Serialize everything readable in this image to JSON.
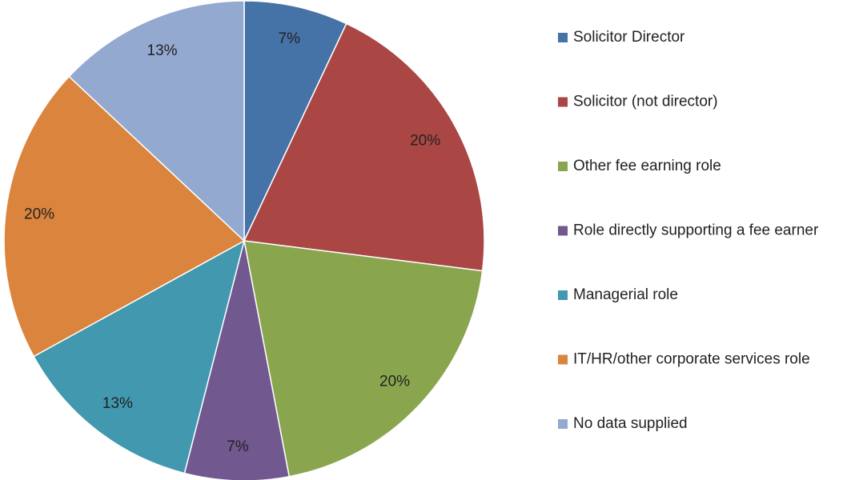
{
  "chart_data": {
    "type": "pie",
    "categories": [
      "Solicitor Director",
      "Solicitor (not director)",
      "Other fee earning role",
      "Role directly supporting a fee earner",
      "Managerial role",
      "IT/HR/other corporate services role",
      "No data supplied"
    ],
    "values": [
      7,
      20,
      20,
      7,
      13,
      20,
      13
    ],
    "value_labels": [
      "7%",
      "20%",
      "20%",
      "7%",
      "13%",
      "20%",
      "13%"
    ],
    "colors": [
      "#4572a7",
      "#aa4643",
      "#89a54e",
      "#71588f",
      "#4198af",
      "#db843d",
      "#93a9cf"
    ],
    "legend": "right"
  }
}
